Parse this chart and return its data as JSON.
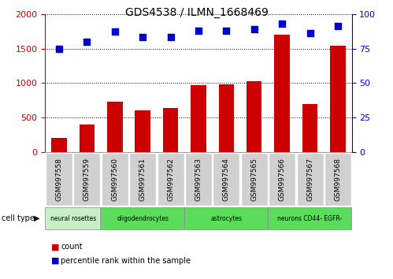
{
  "title": "GDS4538 / ILMN_1668469",
  "samples": [
    "GSM997558",
    "GSM997559",
    "GSM997560",
    "GSM997561",
    "GSM997562",
    "GSM997563",
    "GSM997564",
    "GSM997565",
    "GSM997566",
    "GSM997567",
    "GSM997568"
  ],
  "counts": [
    200,
    400,
    730,
    600,
    640,
    975,
    980,
    1030,
    1700,
    700,
    1540
  ],
  "percentiles": [
    75,
    80,
    87,
    83,
    83,
    88,
    88,
    89,
    93,
    86,
    91
  ],
  "ylim_left": [
    0,
    2000
  ],
  "ylim_right": [
    0,
    100
  ],
  "yticks_left": [
    0,
    500,
    1000,
    1500,
    2000
  ],
  "yticks_right": [
    0,
    25,
    50,
    75,
    100
  ],
  "cell_types": [
    {
      "label": "neural rosettes",
      "start": 0,
      "end": 2,
      "color": "#c8efc8"
    },
    {
      "label": "oligodendrocytes",
      "start": 2,
      "end": 5,
      "color": "#5add5a"
    },
    {
      "label": "astrocytes",
      "start": 5,
      "end": 8,
      "color": "#5add5a"
    },
    {
      "label": "neurons CD44- EGFR-",
      "start": 8,
      "end": 11,
      "color": "#5add5a"
    }
  ],
  "bar_color": "#cc0000",
  "dot_color": "#0000cc",
  "left_axis_color": "#cc0000",
  "right_axis_color": "#0000cc",
  "bg_color": "#ffffff",
  "tick_label_color_left": "#cc0000",
  "tick_label_color_right": "#0000cc",
  "gray_box_color": "#d0d0d0",
  "cell_type_border_color": "#888888"
}
